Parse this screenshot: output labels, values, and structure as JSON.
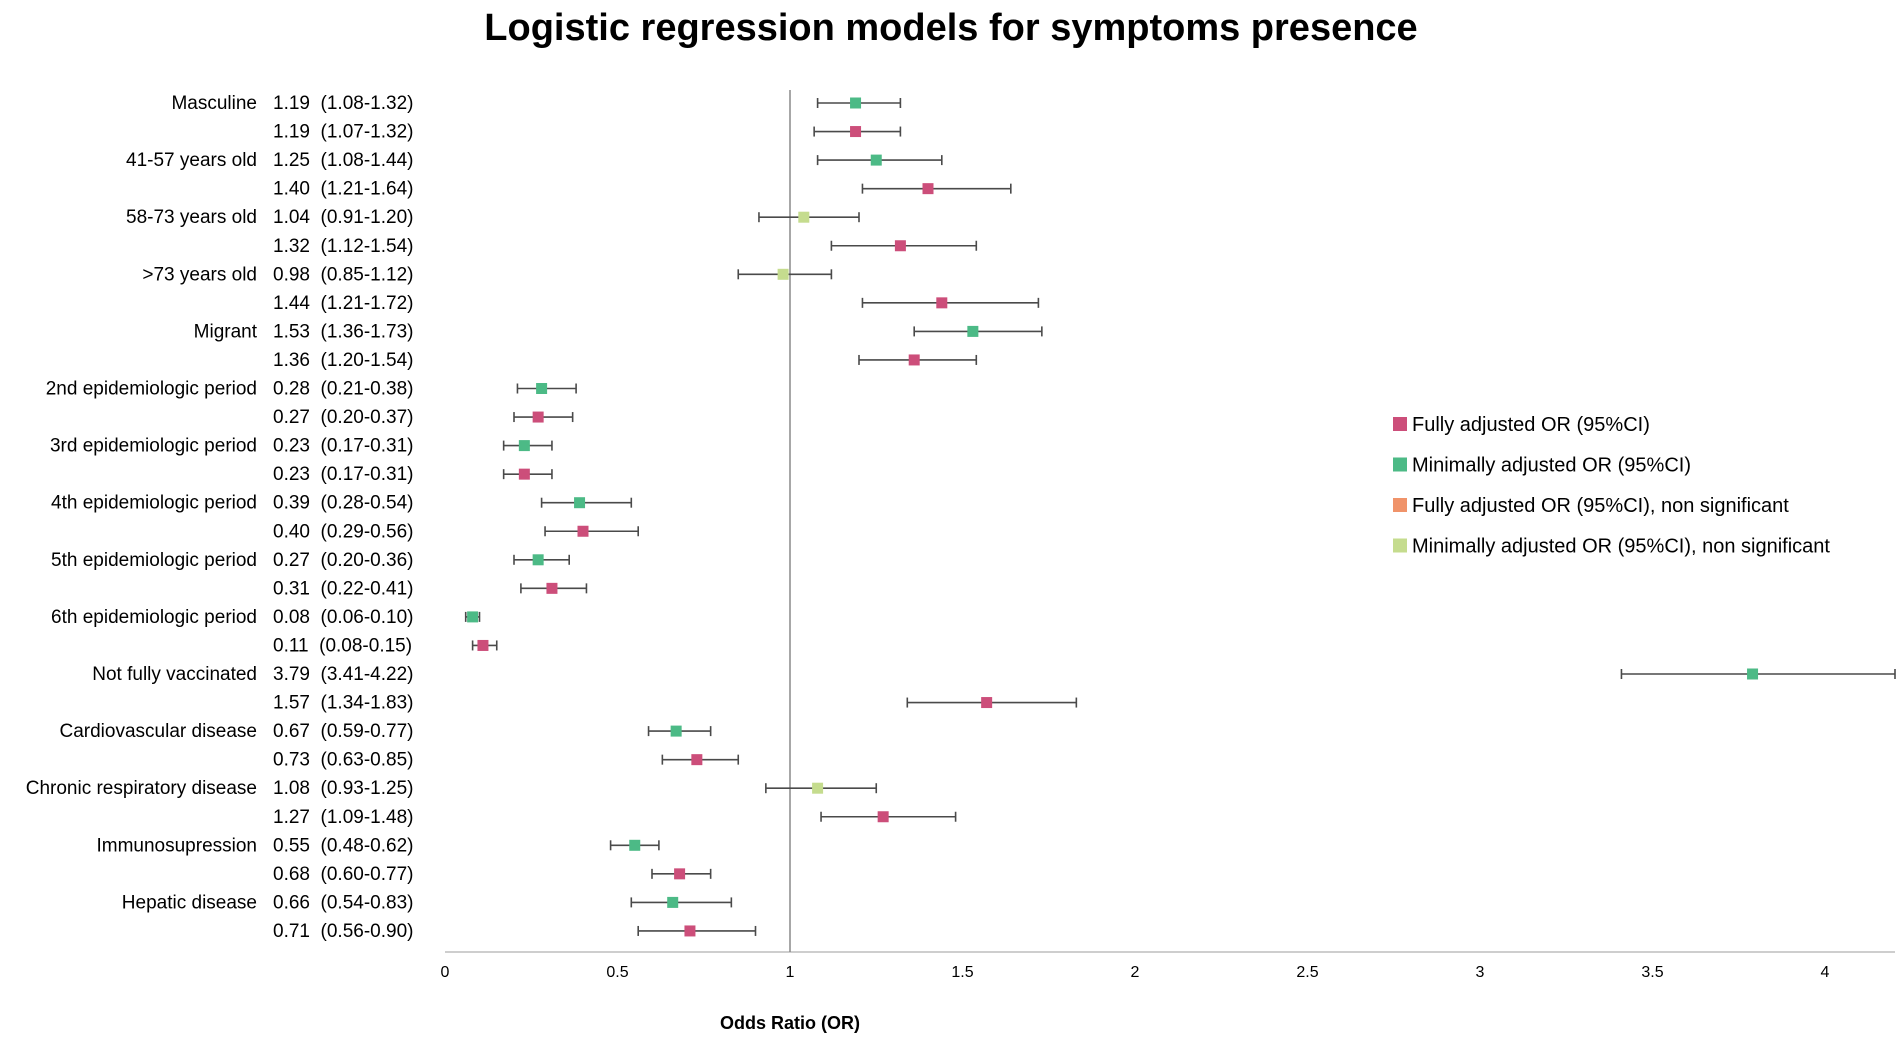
{
  "chart_data": {
    "type": "forest",
    "title": "Logistic regression models for symptoms presence",
    "xlabel": "Odds Ratio (OR)",
    "xlim": [
      0,
      4.2
    ],
    "xticks": [
      "0",
      "0.5",
      "1",
      "1.5",
      "2",
      "2.5",
      "3",
      "3.5",
      "4"
    ],
    "reference_line": 1,
    "legend": [
      {
        "key": "full",
        "label": "Fully adjusted OR (95%CI)",
        "color": "#cc4e7a"
      },
      {
        "key": "min",
        "label": "Minimally adjusted OR (95%CI)",
        "color": "#4cba86"
      },
      {
        "key": "full_ns",
        "label": "Fully adjusted OR (95%CI), non significant",
        "color": "#f0936a"
      },
      {
        "key": "min_ns",
        "label": "Minimally adjusted OR (95%CI), non significant",
        "color": "#c5dc8e"
      }
    ],
    "rows": [
      {
        "name": "Masculine",
        "text": "1.19  (1.08-1.32)",
        "or": 1.19,
        "lo": 1.08,
        "hi": 1.32,
        "series": "min"
      },
      {
        "name": "",
        "text": "1.19  (1.07-1.32)",
        "or": 1.19,
        "lo": 1.07,
        "hi": 1.32,
        "series": "full"
      },
      {
        "name": "41-57 years old",
        "text": "1.25  (1.08-1.44)",
        "or": 1.25,
        "lo": 1.08,
        "hi": 1.44,
        "series": "min"
      },
      {
        "name": "",
        "text": "1.40  (1.21-1.64)",
        "or": 1.4,
        "lo": 1.21,
        "hi": 1.64,
        "series": "full"
      },
      {
        "name": "58-73 years old",
        "text": "1.04  (0.91-1.20)",
        "or": 1.04,
        "lo": 0.91,
        "hi": 1.2,
        "series": "min_ns"
      },
      {
        "name": "",
        "text": "1.32  (1.12-1.54)",
        "or": 1.32,
        "lo": 1.12,
        "hi": 1.54,
        "series": "full"
      },
      {
        "name": ">73 years old",
        "text": "0.98  (0.85-1.12)",
        "or": 0.98,
        "lo": 0.85,
        "hi": 1.12,
        "series": "min_ns"
      },
      {
        "name": "",
        "text": "1.44  (1.21-1.72)",
        "or": 1.44,
        "lo": 1.21,
        "hi": 1.72,
        "series": "full"
      },
      {
        "name": "Migrant",
        "text": "1.53  (1.36-1.73)",
        "or": 1.53,
        "lo": 1.36,
        "hi": 1.73,
        "series": "min"
      },
      {
        "name": "",
        "text": "1.36  (1.20-1.54)",
        "or": 1.36,
        "lo": 1.2,
        "hi": 1.54,
        "series": "full"
      },
      {
        "name": "2nd epidemiologic period",
        "text": "0.28  (0.21-0.38)",
        "or": 0.28,
        "lo": 0.21,
        "hi": 0.38,
        "series": "min"
      },
      {
        "name": "",
        "text": "0.27  (0.20-0.37)",
        "or": 0.27,
        "lo": 0.2,
        "hi": 0.37,
        "series": "full"
      },
      {
        "name": "3rd epidemiologic period",
        "text": "0.23  (0.17-0.31)",
        "or": 0.23,
        "lo": 0.17,
        "hi": 0.31,
        "series": "min"
      },
      {
        "name": "",
        "text": "0.23  (0.17-0.31)",
        "or": 0.23,
        "lo": 0.17,
        "hi": 0.31,
        "series": "full"
      },
      {
        "name": "4th epidemiologic period",
        "text": "0.39  (0.28-0.54)",
        "or": 0.39,
        "lo": 0.28,
        "hi": 0.54,
        "series": "min"
      },
      {
        "name": "",
        "text": "0.40  (0.29-0.56)",
        "or": 0.4,
        "lo": 0.29,
        "hi": 0.56,
        "series": "full"
      },
      {
        "name": "5th epidemiologic period",
        "text": "0.27  (0.20-0.36)",
        "or": 0.27,
        "lo": 0.2,
        "hi": 0.36,
        "series": "min"
      },
      {
        "name": "",
        "text": "0.31  (0.22-0.41)",
        "or": 0.31,
        "lo": 0.22,
        "hi": 0.41,
        "series": "full"
      },
      {
        "name": "6th epidemiologic period",
        "text": "0.08  (0.06-0.10)",
        "or": 0.08,
        "lo": 0.06,
        "hi": 0.1,
        "series": "min"
      },
      {
        "name": "",
        "text": "0.11  (0.08-0.15)",
        "or": 0.11,
        "lo": 0.08,
        "hi": 0.15,
        "series": "full"
      },
      {
        "name": "Not fully vaccinated",
        "text": "3.79  (3.41-4.22)",
        "or": 3.79,
        "lo": 3.41,
        "hi": 4.22,
        "series": "min"
      },
      {
        "name": "",
        "text": "1.57  (1.34-1.83)",
        "or": 1.57,
        "lo": 1.34,
        "hi": 1.83,
        "series": "full"
      },
      {
        "name": "Cardiovascular disease",
        "text": "0.67  (0.59-0.77)",
        "or": 0.67,
        "lo": 0.59,
        "hi": 0.77,
        "series": "min"
      },
      {
        "name": "",
        "text": "0.73  (0.63-0.85)",
        "or": 0.73,
        "lo": 0.63,
        "hi": 0.85,
        "series": "full"
      },
      {
        "name": "Chronic respiratory disease",
        "text": "1.08  (0.93-1.25)",
        "or": 1.08,
        "lo": 0.93,
        "hi": 1.25,
        "series": "min_ns"
      },
      {
        "name": "",
        "text": "1.27  (1.09-1.48)",
        "or": 1.27,
        "lo": 1.09,
        "hi": 1.48,
        "series": "full"
      },
      {
        "name": "Immunosupression",
        "text": "0.55  (0.48-0.62)",
        "or": 0.55,
        "lo": 0.48,
        "hi": 0.62,
        "series": "min"
      },
      {
        "name": "",
        "text": "0.68  (0.60-0.77)",
        "or": 0.68,
        "lo": 0.6,
        "hi": 0.77,
        "series": "full"
      },
      {
        "name": "Hepatic disease",
        "text": "0.66  (0.54-0.83)",
        "or": 0.66,
        "lo": 0.54,
        "hi": 0.83,
        "series": "min"
      },
      {
        "name": "",
        "text": "0.71  (0.56-0.90)",
        "or": 0.71,
        "lo": 0.56,
        "hi": 0.9,
        "series": "full"
      }
    ]
  }
}
